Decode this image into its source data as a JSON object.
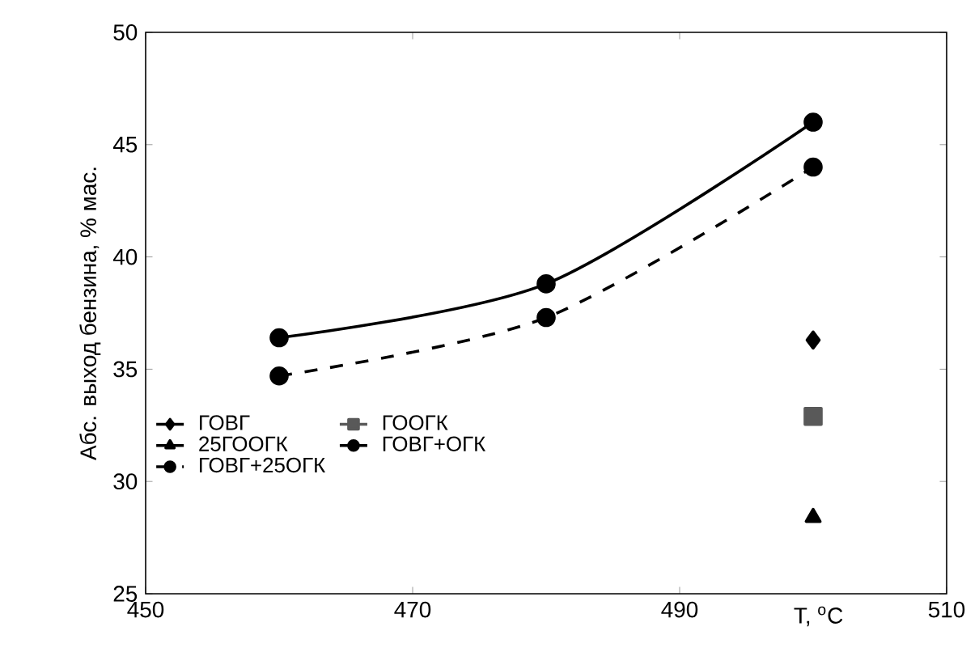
{
  "chart_data": {
    "type": "line",
    "xlabel": "T, $^{o}$C",
    "ylabel": "Абс. выход бензина, % мас.",
    "xlim": [
      450,
      510
    ],
    "xticks": [
      450,
      470,
      490,
      510
    ],
    "ylim": [
      25,
      50
    ],
    "yticks": [
      25,
      30,
      35,
      40,
      45,
      50
    ],
    "grid": false,
    "legend": "bottom left",
    "series": [
      {
        "name": "ГОВГ",
        "color": "#000000",
        "marker": "diamond",
        "line_style": "solid",
        "x": [
          500
        ],
        "values": [
          36.3
        ]
      },
      {
        "name": "ГООГК",
        "color": "#595959",
        "marker": "square",
        "line_style": "solid",
        "x": [
          500
        ],
        "values": [
          32.9
        ]
      },
      {
        "name": "25ГООГК",
        "color": "#000000",
        "marker": "triangle",
        "line_style": "solid",
        "x": [
          500
        ],
        "values": [
          28.4
        ]
      },
      {
        "name": "ГОВГ+ОГК",
        "color": "#000000",
        "marker": "circle",
        "line_style": "solid",
        "x": [
          460,
          480,
          500
        ],
        "values": [
          36.4,
          38.8,
          46.0
        ]
      },
      {
        "name": "ГОВГ+25ОГК",
        "color": "#000000",
        "marker": "circle",
        "line_style": "dashed",
        "x": [
          460,
          480,
          500
        ],
        "values": [
          34.7,
          37.3,
          44.0
        ]
      }
    ]
  }
}
